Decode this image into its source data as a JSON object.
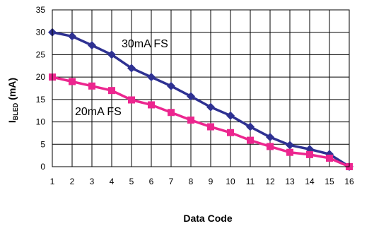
{
  "chart_data": {
    "type": "line",
    "xlabel": "Data Code",
    "ylabel": {
      "main": "I",
      "sub": "BLED",
      "unit": " (mA)"
    },
    "x": [
      1,
      2,
      3,
      4,
      5,
      6,
      7,
      8,
      9,
      10,
      11,
      12,
      13,
      14,
      15,
      16
    ],
    "xlim": [
      1,
      16
    ],
    "ylim": [
      0,
      35
    ],
    "yticks": [
      0,
      5,
      10,
      15,
      20,
      25,
      30,
      35
    ],
    "grid": true,
    "series": [
      {
        "name": "30mA FS",
        "color": "#2e3192",
        "marker": "diamond",
        "values": [
          30,
          29.1,
          27.1,
          25,
          22,
          20,
          18,
          15.7,
          13.3,
          11.4,
          8.9,
          6.6,
          4.8,
          3.9,
          2.8,
          0
        ]
      },
      {
        "name": "20mA FS",
        "color": "#ec268f",
        "marker": "square",
        "values": [
          20,
          19,
          18,
          17,
          14.9,
          13.8,
          12.1,
          10.4,
          8.9,
          7.6,
          5.9,
          4.5,
          3.2,
          2.7,
          1.9,
          0
        ]
      }
    ]
  }
}
